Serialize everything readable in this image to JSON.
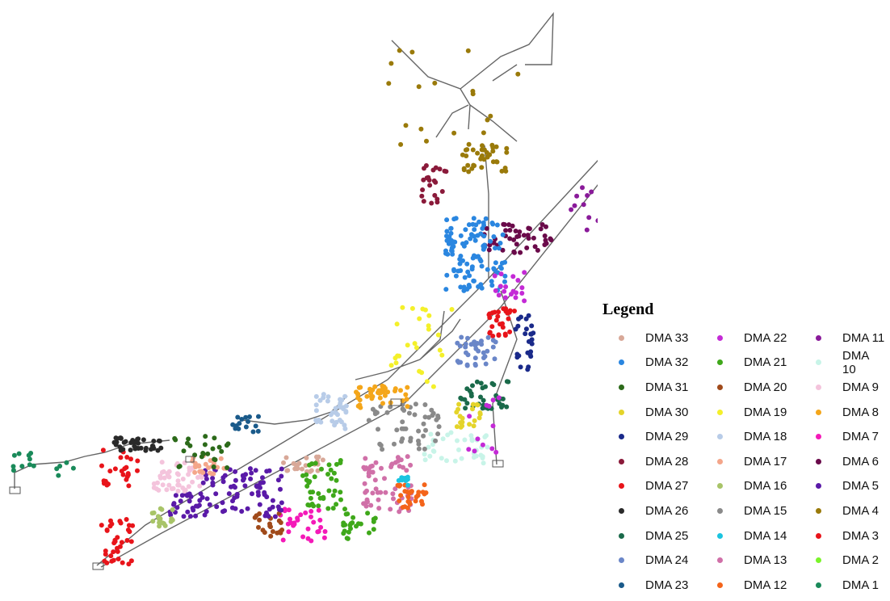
{
  "legend": {
    "title": "Legend",
    "items": [
      {
        "label": "DMA 33",
        "color": "#d8a898"
      },
      {
        "label": "DMA 22",
        "color": "#c42ad6"
      },
      {
        "label": "DMA 11",
        "color": "#8a1a9a"
      },
      {
        "label": "DMA 32",
        "color": "#2a86e0"
      },
      {
        "label": "DMA 21",
        "color": "#3fa81a"
      },
      {
        "label": "DMA 10",
        "color": "#c8f4e8"
      },
      {
        "label": "DMA 31",
        "color": "#2c6a1a"
      },
      {
        "label": "DMA 20",
        "color": "#a04a1a"
      },
      {
        "label": "DMA 9",
        "color": "#f4c4dc"
      },
      {
        "label": "DMA 30",
        "color": "#e4d42a"
      },
      {
        "label": "DMA 19",
        "color": "#f4f02a"
      },
      {
        "label": "DMA 8",
        "color": "#f4a61a"
      },
      {
        "label": "DMA 29",
        "color": "#1a2a8a"
      },
      {
        "label": "DMA 18",
        "color": "#b8cce8"
      },
      {
        "label": "DMA 7",
        "color": "#f41ab8"
      },
      {
        "label": "DMA 28",
        "color": "#8a1a3a"
      },
      {
        "label": "DMA 17",
        "color": "#f4a68a"
      },
      {
        "label": "DMA 6",
        "color": "#6a0a4a"
      },
      {
        "label": "DMA 27",
        "color": "#e8141a"
      },
      {
        "label": "DMA 16",
        "color": "#a8c468"
      },
      {
        "label": "DMA 5",
        "color": "#5a1aa8"
      },
      {
        "label": "DMA 26",
        "color": "#2a2a2a"
      },
      {
        "label": "DMA 15",
        "color": "#8a8a8a"
      },
      {
        "label": "DMA 4",
        "color": "#9a7a0a"
      },
      {
        "label": "DMA 25",
        "color": "#1a6a4a"
      },
      {
        "label": "DMA 14",
        "color": "#1ac4e0"
      },
      {
        "label": "DMA 3",
        "color": "#e8141a"
      },
      {
        "label": "DMA 24",
        "color": "#6a86c8"
      },
      {
        "label": "DMA 13",
        "color": "#d070a8"
      },
      {
        "label": "DMA 2",
        "color": "#7af42a"
      },
      {
        "label": "DMA 23",
        "color": "#1a5a8a"
      },
      {
        "label": "DMA 12",
        "color": "#f4641a"
      },
      {
        "label": "DMA 1",
        "color": "#1a8a5a"
      }
    ]
  }
}
